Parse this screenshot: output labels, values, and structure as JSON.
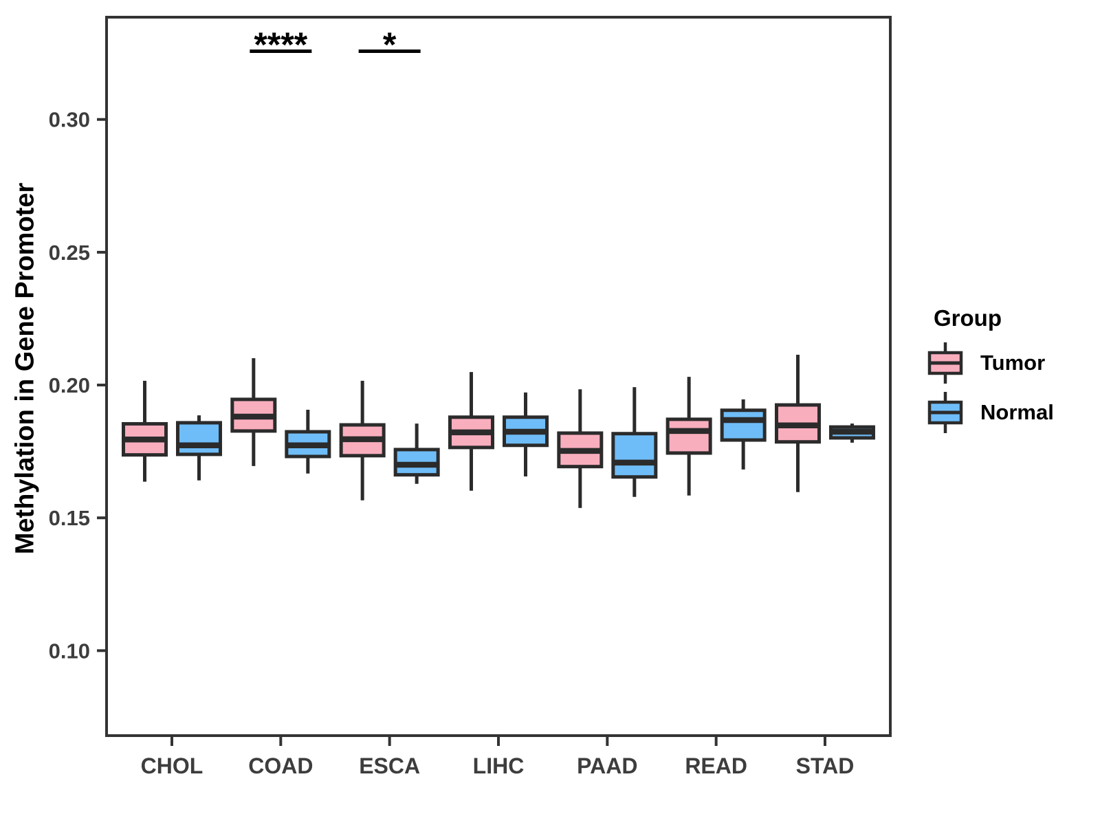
{
  "chart_data": {
    "type": "boxplot",
    "title": "",
    "xlabel": "",
    "ylabel": "Methylation in Gene Promoter",
    "categories": [
      "CHOL",
      "COAD",
      "ESCA",
      "LIHC",
      "PAAD",
      "READ",
      "STAD"
    ],
    "yticks": [
      0.1,
      0.15,
      0.2,
      0.25,
      0.3
    ],
    "ytick_labels": [
      "0.10",
      "0.15",
      "0.20",
      "0.25",
      "0.30"
    ],
    "ylim": [
      0.068,
      0.3385
    ],
    "grid": false,
    "groups": [
      {
        "name": "Tumor",
        "color": "#F9AEBE"
      },
      {
        "name": "Normal",
        "color": "#6FBDF8"
      }
    ],
    "stroke_color": "#2b2b2b",
    "series": [
      {
        "name": "Tumor",
        "values": [
          {
            "category": "CHOL",
            "min": 0.1636,
            "q1": 0.1737,
            "median": 0.1795,
            "q3": 0.1854,
            "max": 0.2016
          },
          {
            "category": "COAD",
            "min": 0.1695,
            "q1": 0.1827,
            "median": 0.1881,
            "q3": 0.1946,
            "max": 0.2101
          },
          {
            "category": "ESCA",
            "min": 0.1566,
            "q1": 0.1734,
            "median": 0.1796,
            "q3": 0.185,
            "max": 0.2016
          },
          {
            "category": "LIHC",
            "min": 0.1602,
            "q1": 0.1765,
            "median": 0.1822,
            "q3": 0.1879,
            "max": 0.2049
          },
          {
            "category": "PAAD",
            "min": 0.1537,
            "q1": 0.1693,
            "median": 0.1752,
            "q3": 0.1819,
            "max": 0.1984
          },
          {
            "category": "READ",
            "min": 0.1584,
            "q1": 0.1744,
            "median": 0.1827,
            "q3": 0.1871,
            "max": 0.2031
          },
          {
            "category": "STAD",
            "min": 0.1597,
            "q1": 0.1786,
            "median": 0.1848,
            "q3": 0.1925,
            "max": 0.2114
          }
        ]
      },
      {
        "name": "Normal",
        "values": [
          {
            "category": "CHOL",
            "min": 0.1641,
            "q1": 0.1739,
            "median": 0.1773,
            "q3": 0.1858,
            "max": 0.1886
          },
          {
            "category": "COAD",
            "min": 0.1667,
            "q1": 0.1731,
            "median": 0.1773,
            "q3": 0.1824,
            "max": 0.1907
          },
          {
            "category": "ESCA",
            "min": 0.1628,
            "q1": 0.1662,
            "median": 0.17,
            "q3": 0.1757,
            "max": 0.1855
          },
          {
            "category": "LIHC",
            "min": 0.1656,
            "q1": 0.1773,
            "median": 0.1824,
            "q3": 0.1879,
            "max": 0.1972
          },
          {
            "category": "PAAD",
            "min": 0.1579,
            "q1": 0.1654,
            "median": 0.1708,
            "q3": 0.1817,
            "max": 0.1992
          },
          {
            "category": "READ",
            "min": 0.1682,
            "q1": 0.1793,
            "median": 0.1868,
            "q3": 0.1905,
            "max": 0.1946
          },
          {
            "category": "STAD",
            "min": 0.1783,
            "q1": 0.1801,
            "median": 0.1824,
            "q3": 0.1842,
            "max": 0.1855
          }
        ]
      }
    ],
    "annotations": [
      {
        "category": "COAD",
        "label": "****"
      },
      {
        "category": "ESCA",
        "label": "*"
      }
    ],
    "legend": {
      "title": "Group",
      "position": "right",
      "entries": [
        "Tumor",
        "Normal"
      ]
    }
  }
}
